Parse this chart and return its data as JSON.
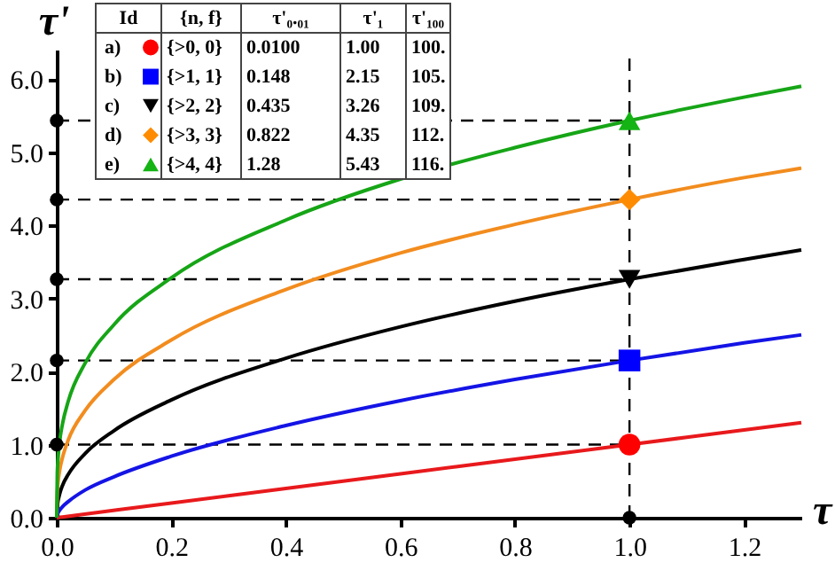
{
  "chart_data": {
    "type": "line",
    "xlabel": "τ",
    "ylabel": "τ'",
    "xlim": [
      0,
      1.3
    ],
    "ylim": [
      0,
      6.4
    ],
    "xticks": [
      {
        "value": 0,
        "label": "0.0"
      },
      0.2,
      0.4,
      0.6,
      0.8,
      {
        "value": 1,
        "label": "1.0"
      },
      1.2
    ],
    "yticks": [
      {
        "value": 0,
        "label": "0.0"
      },
      {
        "value": 1,
        "label": "1.0"
      },
      {
        "value": 2,
        "label": "2.0"
      },
      {
        "value": 3,
        "label": "3.0"
      },
      {
        "value": 4,
        "label": "4.0"
      },
      {
        "value": 5,
        "label": "5.0"
      },
      {
        "value": 6,
        "label": "6.0"
      }
    ],
    "grid": false,
    "legend": "top",
    "annotations": [
      "Id",
      "{n, f}",
      "τ'₀.₀₁",
      "τ'₁",
      "τ'₁₀₀",
      "{>0, 0}",
      "0.0100",
      "1.00",
      "100.",
      "{>1, 1}",
      "0.148",
      "2.15",
      "105.",
      "{>2, 2}",
      "0.435",
      "3.26",
      "109.",
      "{>3, 3}",
      "0.822",
      "4.35",
      "112.",
      "{>4, 4}",
      "1.28",
      "5.43",
      "116."
    ],
    "ref_lines": [
      {
        "axis": "y",
        "value": 1.0,
        "color": "#000000",
        "line_style": "dashed"
      },
      {
        "axis": "y",
        "value": 2.15,
        "color": "#000000",
        "line_style": "dashed"
      },
      {
        "axis": "y",
        "value": 3.26,
        "color": "#000000",
        "line_style": "dashed"
      },
      {
        "axis": "y",
        "value": 4.35,
        "color": "#000000",
        "line_style": "dashed"
      },
      {
        "axis": "y",
        "value": 5.43,
        "color": "#000000",
        "line_style": "dashed"
      },
      {
        "axis": "x",
        "value": 1.0,
        "color": "#000000",
        "line_style": "dashed"
      }
    ],
    "series": [
      {
        "color": "#e8191c",
        "line_style": "solid",
        "x": [
          0,
          0.01,
          0.2,
          0.4,
          0.6,
          0.8,
          1.0,
          1.2,
          1.3
        ],
        "values": [
          0,
          0.01,
          0.2,
          0.4,
          0.6,
          0.8,
          1.0,
          1.2,
          1.3
        ]
      },
      {
        "color": "#1414e6",
        "line_style": "solid",
        "x": [
          0,
          0.001,
          0.005,
          0.01,
          0.02,
          0.05,
          0.1,
          0.2,
          0.4,
          0.6,
          0.8,
          1.0,
          1.2,
          1.3
        ],
        "values": [
          0,
          0.04,
          0.1,
          0.15,
          0.22,
          0.38,
          0.56,
          0.84,
          1.26,
          1.6,
          1.89,
          2.15,
          2.39,
          2.5
        ]
      },
      {
        "color": "#000000",
        "line_style": "solid",
        "x": [
          0,
          0.001,
          0.005,
          0.01,
          0.02,
          0.05,
          0.1,
          0.2,
          0.4,
          0.6,
          0.8,
          1.0,
          1.2,
          1.3
        ],
        "values": [
          0,
          0.16,
          0.32,
          0.44,
          0.59,
          0.88,
          1.19,
          1.61,
          2.18,
          2.61,
          2.96,
          3.26,
          3.53,
          3.66
        ]
      },
      {
        "color": "#f28c1e",
        "line_style": "solid",
        "x": [
          0,
          0.001,
          0.005,
          0.01,
          0.02,
          0.05,
          0.1,
          0.2,
          0.4,
          0.6,
          0.8,
          1.0,
          1.2,
          1.3
        ],
        "values": [
          0,
          0.36,
          0.64,
          0.82,
          1.06,
          1.47,
          1.89,
          2.43,
          3.12,
          3.62,
          4.01,
          4.35,
          4.65,
          4.78
        ]
      },
      {
        "color": "#16a516",
        "line_style": "solid",
        "x": [
          0,
          0.001,
          0.005,
          0.01,
          0.02,
          0.05,
          0.1,
          0.2,
          0.4,
          0.6,
          0.8,
          1.0,
          1.2,
          1.3
        ],
        "values": [
          0,
          0.62,
          1.03,
          1.28,
          1.59,
          2.12,
          2.64,
          3.28,
          4.07,
          4.63,
          5.06,
          5.43,
          5.75,
          5.9
        ]
      },
      {
        "type": "scatter",
        "color": "#000000",
        "marker": "circle",
        "x": [
          0,
          0,
          0,
          0,
          0,
          1.0
        ],
        "values": [
          1.0,
          2.15,
          3.26,
          4.35,
          5.43,
          0
        ]
      },
      {
        "type": "scatter",
        "name": "a)",
        "color": "#ff0000",
        "marker": "circle",
        "x": [
          1.0
        ],
        "values": [
          1.0
        ]
      },
      {
        "type": "scatter",
        "name": "b)",
        "color": "#0000ff",
        "marker": "square",
        "x": [
          1.0
        ],
        "values": [
          2.15
        ]
      },
      {
        "type": "scatter",
        "name": "c)",
        "color": "#000000",
        "marker": "triangle-down",
        "x": [
          1.0
        ],
        "values": [
          3.26
        ]
      },
      {
        "type": "scatter",
        "name": "d)",
        "color": "#ff8c00",
        "marker": "diamond",
        "x": [
          1.0
        ],
        "values": [
          4.35
        ]
      },
      {
        "type": "scatter",
        "name": "e)",
        "color": "#14b414",
        "marker": "triangle",
        "x": [
          1.0
        ],
        "values": [
          5.43
        ]
      }
    ]
  }
}
